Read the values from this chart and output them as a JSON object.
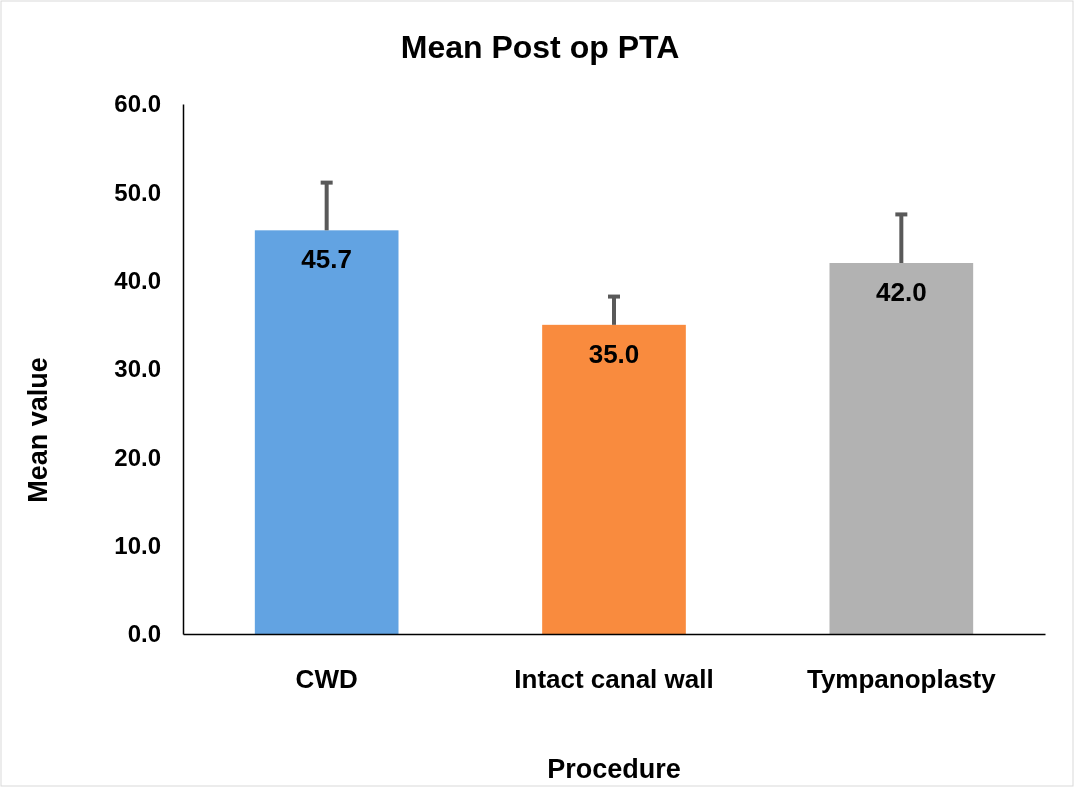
{
  "chart_data": {
    "type": "bar",
    "title": "Mean Post op PTA",
    "xlabel": "Procedure",
    "ylabel": "Mean value",
    "categories": [
      "CWD",
      "Intact canal wall",
      "Tympanoplasty"
    ],
    "values": [
      45.7,
      35.0,
      42.0
    ],
    "colors": [
      "#62a3e2",
      "#f98b3e",
      "#b2b2b2"
    ],
    "errors": [
      [
        45.7,
        51.1
      ],
      [
        35.0,
        38.2
      ],
      [
        42.0,
        47.5
      ]
    ],
    "value_labels": [
      "45.7",
      "35.0",
      "42.0"
    ],
    "ylim": [
      0,
      60
    ],
    "yticks": [
      {
        "value": 0,
        "label": "0.0"
      },
      {
        "value": 10,
        "label": "10.0"
      },
      {
        "value": 20,
        "label": "20.0"
      },
      {
        "value": 30,
        "label": "30.0"
      },
      {
        "value": 40,
        "label": "40.0"
      },
      {
        "value": 50,
        "label": "50.0"
      },
      {
        "value": 60,
        "label": "60.0"
      }
    ]
  }
}
